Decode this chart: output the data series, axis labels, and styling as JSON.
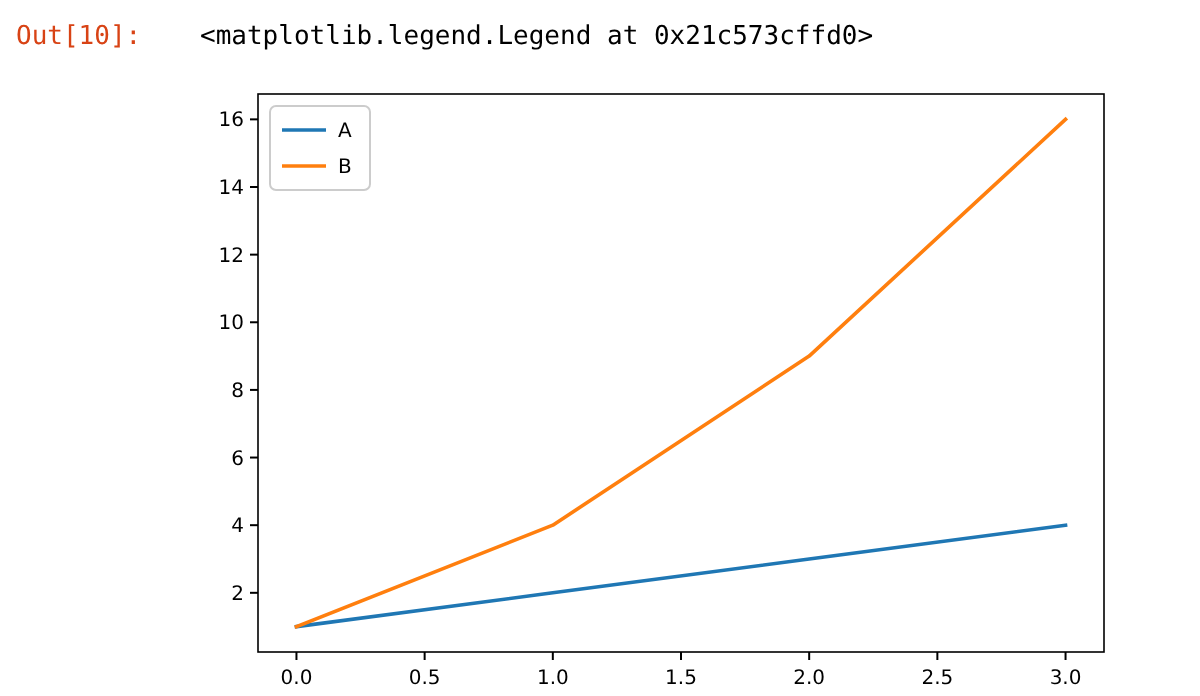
{
  "chart_data": {
    "type": "line",
    "annotations": [
      "Out[10]:",
      "<matplotlib.legend.Legend at 0x21c573cffd0>"
    ],
    "x": [
      0,
      1,
      2,
      3
    ],
    "series": [
      {
        "name": "A",
        "color": "#1f77b4",
        "values": [
          1,
          2,
          3,
          4
        ]
      },
      {
        "name": "B",
        "color": "#ff7f0e",
        "values": [
          1,
          4,
          9,
          16
        ]
      }
    ],
    "xlim": [
      -0.15,
      3.15
    ],
    "xticks": [
      {
        "value": 0,
        "label": "0.0"
      },
      {
        "value": 0.5,
        "label": "0.5"
      },
      {
        "value": 1,
        "label": "1.0"
      },
      {
        "value": 1.5,
        "label": "1.5"
      },
      {
        "value": 2,
        "label": "2.0"
      },
      {
        "value": 2.5,
        "label": "2.5"
      },
      {
        "value": 3,
        "label": "3.0"
      }
    ],
    "ylim": [
      0.25,
      16.75
    ],
    "yticks": [
      2,
      4,
      6,
      8,
      10,
      12,
      14,
      16
    ],
    "legend": "top left",
    "grid": false
  }
}
